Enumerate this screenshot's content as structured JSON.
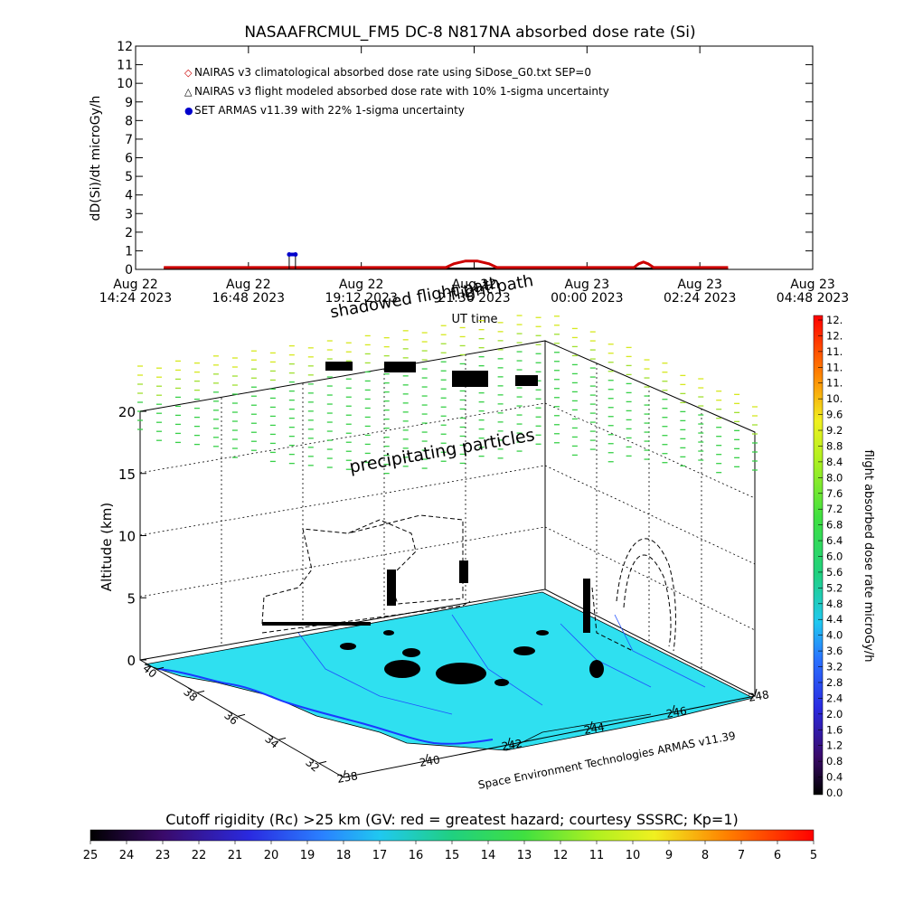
{
  "top_chart": {
    "title": "NASAAFRCMUL_FM5 DC-8   N817NA absorbed dose rate (Si)",
    "ylabel": "dD(Si)/dt microGy/h",
    "xlabel": "UT time",
    "legend": [
      {
        "marker": "◇",
        "color": "#cc0000",
        "text": "NAIRAS v3 climatological absorbed dose rate using SiDose_G0.txt SEP=0"
      },
      {
        "marker": "△",
        "color": "#000000",
        "text": "NAIRAS v3 flight modeled absorbed dose rate with 10% 1-sigma uncertainty"
      },
      {
        "marker": "●",
        "color": "#0000cc",
        "text": "SET ARMAS v11.39 with 22% 1-sigma uncertainty"
      }
    ],
    "x_ticks": [
      {
        "line1": "Aug 22",
        "line2": "14:24 2023"
      },
      {
        "line1": "Aug 22",
        "line2": "16:48 2023"
      },
      {
        "line1": "Aug 22",
        "line2": "19:12 2023"
      },
      {
        "line1": "Aug 22",
        "line2": "21:36 2023"
      },
      {
        "line1": "Aug 23",
        "line2": "00:00 2023"
      },
      {
        "line1": "Aug 23",
        "line2": "02:24 2023"
      },
      {
        "line1": "Aug 23",
        "line2": "04:48 2023"
      }
    ],
    "y_ticks": [
      "0",
      "1",
      "2",
      "3",
      "4",
      "5",
      "6",
      "7",
      "8",
      "9",
      "10",
      "11",
      "12"
    ]
  },
  "chart_data": [
    {
      "type": "line",
      "title": "NASAAFRCMUL_FM5 DC-8   N817NA absorbed dose rate (Si)",
      "xlabel": "UT time",
      "ylabel": "dD(Si)/dt microGy/h",
      "x_range": [
        "2023-08-22T14:24",
        "2023-08-23T04:48"
      ],
      "ylim": [
        0,
        12
      ],
      "series": [
        {
          "name": "NAIRAS v3 climatological absorbed dose rate using SiDose_G0.txt SEP=0",
          "color": "#cc0000",
          "x": [
            "2023-08-22T15:00",
            "2023-08-22T17:00",
            "2023-08-22T19:00",
            "2023-08-22T21:00",
            "2023-08-22T21:10",
            "2023-08-22T21:25",
            "2023-08-22T21:40",
            "2023-08-22T21:55",
            "2023-08-22T22:05",
            "2023-08-23T00:00",
            "2023-08-23T01:00",
            "2023-08-23T01:06",
            "2023-08-23T01:12",
            "2023-08-23T01:18",
            "2023-08-23T01:25",
            "2023-08-23T03:00"
          ],
          "y": [
            0.1,
            0.1,
            0.1,
            0.1,
            0.3,
            0.45,
            0.45,
            0.3,
            0.1,
            0.1,
            0.1,
            0.3,
            0.4,
            0.3,
            0.1,
            0.1
          ]
        },
        {
          "name": "NAIRAS v3 flight modeled absorbed dose rate with 10% 1-sigma uncertainty",
          "color": "#000000",
          "x": [
            "2023-08-22T15:00",
            "2023-08-22T21:00",
            "2023-08-23T03:00"
          ],
          "y": [
            0.05,
            0.05,
            0.05
          ]
        },
        {
          "name": "SET ARMAS v11.39 with 22% 1-sigma uncertainty",
          "color": "#0000cc",
          "x": [
            "2023-08-22T17:40",
            "2023-08-22T17:48"
          ],
          "y": [
            0.8,
            0.8
          ]
        }
      ]
    }
  ],
  "scene": {
    "altitude_label": "Altitude (km)",
    "altitude_ticks": [
      "0",
      "5",
      "10",
      "15",
      "20"
    ],
    "lat_ticks": [
      "40",
      "38",
      "36",
      "34",
      "32"
    ],
    "lon_ticks": [
      "238",
      "240",
      "242",
      "244",
      "246",
      "248"
    ],
    "annotation_precip": "precipitating particles",
    "annotation_flightpath": "flight path",
    "annotation_shadow": "shadowed flight path",
    "credit": "Space Environment Technologies ARMAS v11.39"
  },
  "right_colorbar": {
    "label": "flight absorbed dose rate microGy/h",
    "ticks": [
      "0.0",
      "0.4",
      "0.8",
      "1.2",
      "1.6",
      "2.0",
      "2.4",
      "2.8",
      "3.2",
      "3.6",
      "4.0",
      "4.4",
      "4.8",
      "5.2",
      "5.6",
      "6.0",
      "6.4",
      "6.8",
      "7.2",
      "7.6",
      "8.0",
      "8.4",
      "8.8",
      "9.2",
      "9.6",
      "10.",
      "11.",
      "11.",
      "11.",
      "12.",
      "12."
    ]
  },
  "bottom_colorbar": {
    "title": "Cutoff rigidity (Rc) >25 km (GV: red = greatest hazard; courtesy SSSRC; Kp=1)",
    "ticks": [
      "25",
      "24",
      "23",
      "22",
      "21",
      "20",
      "19",
      "18",
      "17",
      "16",
      "15",
      "14",
      "13",
      "12",
      "11",
      "10",
      "9",
      "8",
      "7",
      "6",
      "5"
    ]
  }
}
